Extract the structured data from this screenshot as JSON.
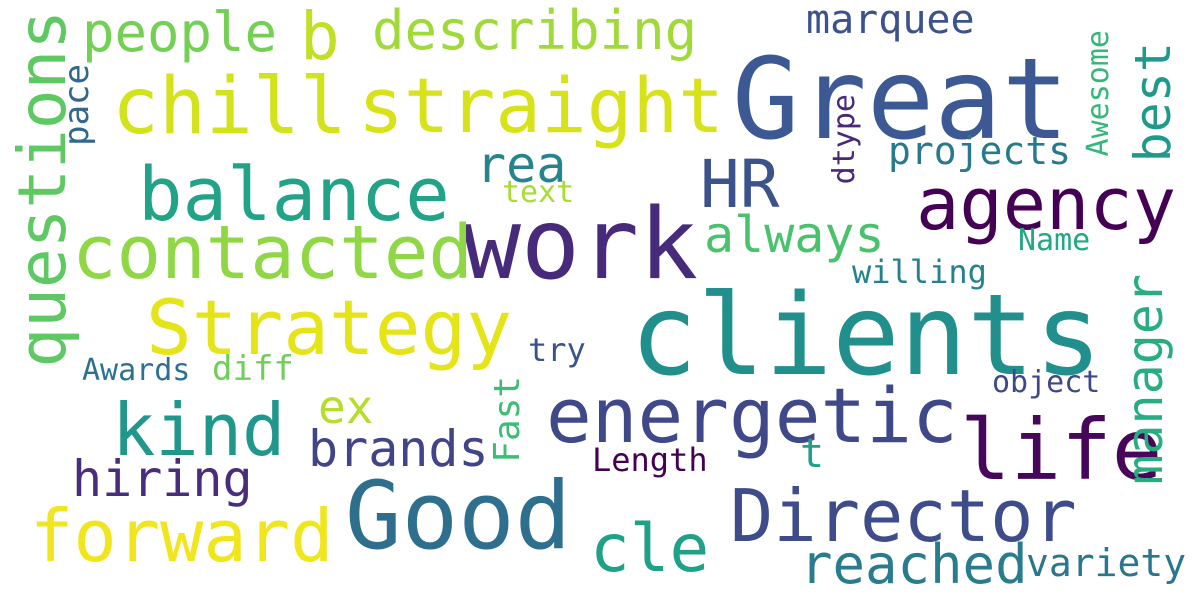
{
  "words": [
    {
      "text": "Great",
      "color": "#3d5994"
    },
    {
      "text": "clients",
      "color": "#218f8c"
    },
    {
      "text": "work",
      "color": "#472a7a"
    },
    {
      "text": "Good",
      "color": "#2e6f8e"
    },
    {
      "text": "chill",
      "color": "#d2e21b"
    },
    {
      "text": "straight",
      "color": "#d8e219"
    },
    {
      "text": "balance",
      "color": "#20a386"
    },
    {
      "text": "contacted",
      "color": "#8fd744"
    },
    {
      "text": "Strategy",
      "color": "#e5e419"
    },
    {
      "text": "energetic",
      "color": "#3f4889"
    },
    {
      "text": "agency",
      "color": "#440154"
    },
    {
      "text": "life",
      "color": "#46075a"
    },
    {
      "text": "Director",
      "color": "#3e4c8a"
    },
    {
      "text": "forward",
      "color": "#f1e51d"
    },
    {
      "text": "kind",
      "color": "#1f988b"
    },
    {
      "text": "questions",
      "color": "#5ec962"
    },
    {
      "text": "cle",
      "color": "#1fa187"
    },
    {
      "text": "reached",
      "color": "#287c8e"
    },
    {
      "text": "HR",
      "color": "#3b528b"
    },
    {
      "text": "b",
      "color": "#c2df23"
    },
    {
      "text": "people",
      "color": "#74d055"
    },
    {
      "text": "describing",
      "color": "#a0da39"
    },
    {
      "text": "rea",
      "color": "#25848e"
    },
    {
      "text": "always",
      "color": "#4ac16d"
    },
    {
      "text": "brands",
      "color": "#414487"
    },
    {
      "text": "hiring",
      "color": "#472d7b"
    },
    {
      "text": "ex",
      "color": "#b5de2b"
    },
    {
      "text": "manager",
      "color": "#27ad81"
    },
    {
      "text": "best",
      "color": "#1f9a8a"
    },
    {
      "text": "projects",
      "color": "#2a788e"
    },
    {
      "text": "marquee",
      "color": "#3b528b"
    },
    {
      "text": "Awesome",
      "color": "#35b779"
    },
    {
      "text": "variety",
      "color": "#2a768e"
    },
    {
      "text": "willing",
      "color": "#26818e"
    },
    {
      "text": "Name",
      "color": "#22a884"
    },
    {
      "text": "object",
      "color": "#3e4989"
    },
    {
      "text": "Length",
      "color": "#440154"
    },
    {
      "text": "Fast",
      "color": "#3dbc74"
    },
    {
      "text": "diff",
      "color": "#6ece58"
    },
    {
      "text": "Awards",
      "color": "#2c728e"
    },
    {
      "text": "try",
      "color": "#3b528b"
    },
    {
      "text": "text",
      "color": "#a8db34"
    },
    {
      "text": "pace",
      "color": "#31668e"
    },
    {
      "text": "dtype",
      "color": "#482878"
    },
    {
      "text": "t",
      "color": "#1fa088"
    }
  ]
}
